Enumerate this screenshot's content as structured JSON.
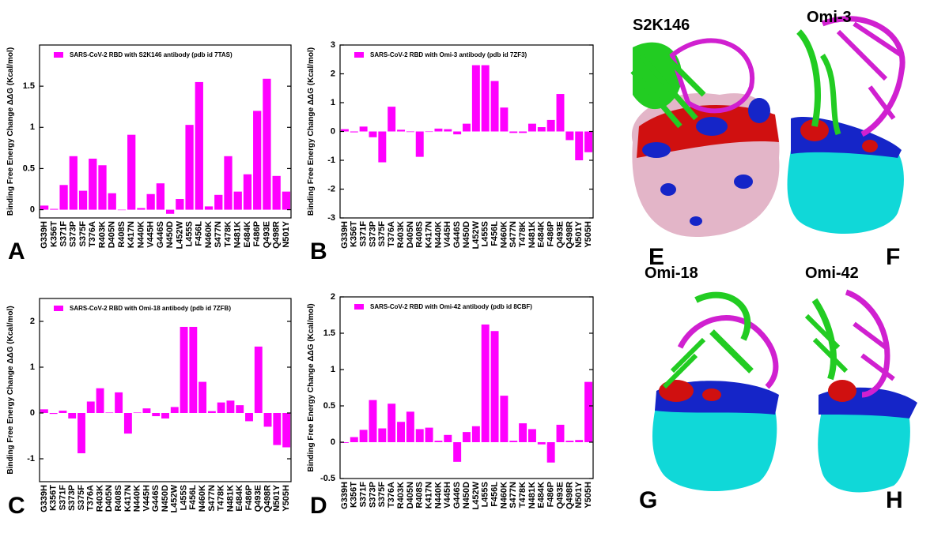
{
  "chart_data": [
    {
      "type": "bar",
      "panel_label": "A",
      "ylabel": "Binding Free Energy Change ΔΔG (Kcal/mol)",
      "categories": [
        "G339H",
        "K356T",
        "S371F",
        "S373P",
        "S375F",
        "T376A",
        "R403K",
        "D405N",
        "R408S",
        "K417N",
        "N440K",
        "V445H",
        "G446S",
        "N450D",
        "L452W",
        "L455S",
        "F456L",
        "N460K",
        "S477N",
        "T478K",
        "N481K",
        "E484K",
        "F486P",
        "Q493E",
        "Q498R",
        "N501Y"
      ],
      "series": [
        {
          "name": "SARS-CoV-2 RBD  with S2K146 antibody (pdb id 7TAS)",
          "color": "#ff00ff",
          "values": [
            0.05,
            0.01,
            0.3,
            0.65,
            0.23,
            0.62,
            0.54,
            0.2,
            0.0,
            0.91,
            0.02,
            0.19,
            0.32,
            -0.05,
            0.13,
            1.03,
            1.55,
            0.04,
            0.18,
            0.65,
            0.22,
            0.43,
            1.2,
            1.59,
            0.41,
            0.22
          ]
        }
      ],
      "ylim": [
        -0.1,
        2
      ],
      "yticks": [
        0,
        0.5,
        1,
        1.5
      ]
    },
    {
      "type": "bar",
      "panel_label": "B",
      "ylabel": "Binding Free Energy Change ΔΔG (Kcal/mol)",
      "categories": [
        "G339H",
        "K356T",
        "S371F",
        "S373P",
        "S375F",
        "T376A",
        "R403K",
        "D405N",
        "R408S",
        "K417N",
        "N440K",
        "V445H",
        "G446S",
        "N450D",
        "L452W",
        "L455S",
        "F456L",
        "N460K",
        "S477N",
        "T478K",
        "N481K",
        "E484K",
        "F486P",
        "Q493E",
        "Q498R",
        "N501Y",
        "Y505H"
      ],
      "series": [
        {
          "name": "SARS-CoV-2 RBD  with Omi-3 antibody (pdb id 7ZF3)",
          "color": "#ff00ff",
          "values": [
            0.08,
            -0.03,
            0.17,
            -0.2,
            -1.07,
            0.86,
            0.06,
            -0.02,
            -0.88,
            0.0,
            0.1,
            0.08,
            -0.1,
            0.27,
            2.3,
            2.3,
            1.75,
            0.83,
            -0.05,
            -0.05,
            0.27,
            0.15,
            0.4,
            1.3,
            -0.3,
            -1.0,
            -0.72
          ]
        }
      ],
      "ylim": [
        -3,
        3
      ],
      "yticks": [
        -3,
        -2,
        -1,
        0,
        1,
        2,
        3
      ]
    },
    {
      "type": "bar",
      "panel_label": "C",
      "ylabel": "Binding Free Energy Change ΔΔG (Kcal/mol)",
      "categories": [
        "G339H",
        "K356T",
        "S371F",
        "S373P",
        "S375F",
        "T376A",
        "R403K",
        "D405N",
        "R408S",
        "K417N",
        "N440K",
        "V445H",
        "G446S",
        "N450D",
        "L452W",
        "L455S",
        "F456L",
        "N460K",
        "S477N",
        "T478K",
        "N481K",
        "E484K",
        "F486P",
        "Q493E",
        "Q498R",
        "N501Y",
        "Y505H"
      ],
      "series": [
        {
          "name": "SARS-CoV-2 RBD  with Omi-18 antibody (pdb id 7ZFB)",
          "color": "#ff00ff",
          "values": [
            0.08,
            -0.02,
            0.05,
            -0.12,
            -0.88,
            0.25,
            0.54,
            0.01,
            0.45,
            -0.45,
            0.01,
            0.1,
            -0.07,
            -0.12,
            0.13,
            1.88,
            1.88,
            0.68,
            0.04,
            0.23,
            0.27,
            0.17,
            -0.18,
            1.45,
            -0.3,
            -0.7,
            -0.75
          ]
        }
      ],
      "ylim": [
        -1.5,
        2.5
      ],
      "yticks": [
        -1,
        0,
        1,
        2
      ]
    },
    {
      "type": "bar",
      "panel_label": "D",
      "ylabel": "Binding Free Energy Change ΔΔG (Kcal/mol)",
      "categories": [
        "G339H",
        "K356T",
        "S371F",
        "S373P",
        "S375F",
        "T376A",
        "R403K",
        "D405N",
        "R408S",
        "K417N",
        "N440K",
        "V445H",
        "G446S",
        "N450D",
        "L452W",
        "L455S",
        "F456L",
        "N460K",
        "S477N",
        "T478K",
        "N481K",
        "E484K",
        "F486P",
        "Q493E",
        "Q498R",
        "N501Y",
        "Y505H"
      ],
      "series": [
        {
          "name": "SARS-CoV-2 RBD  with Omi-42 antibody (pdb id 8CBF)",
          "color": "#ff00ff",
          "values": [
            -0.01,
            0.07,
            0.17,
            0.58,
            0.19,
            0.53,
            0.28,
            0.42,
            0.18,
            0.2,
            0.02,
            0.1,
            -0.27,
            0.14,
            0.22,
            1.62,
            1.53,
            0.64,
            0.02,
            0.26,
            0.18,
            -0.03,
            -0.28,
            0.24,
            0.02,
            0.03,
            0.83
          ]
        }
      ],
      "ylim": [
        -0.5,
        2
      ],
      "yticks": [
        -0.5,
        0,
        0.5,
        1,
        1.5,
        2
      ]
    }
  ],
  "structures": [
    {
      "title": "S2K146",
      "label": "E"
    },
    {
      "title": "Omi-3",
      "label": "F"
    },
    {
      "title": "Omi-18",
      "label": "G"
    },
    {
      "title": "Omi-42",
      "label": "H"
    }
  ]
}
